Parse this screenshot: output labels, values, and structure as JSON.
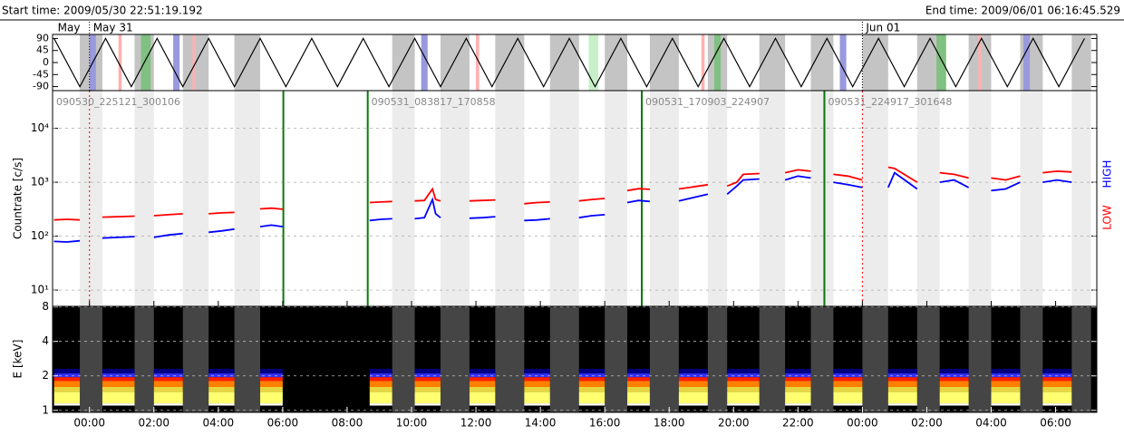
{
  "header": {
    "start": "Start time: 2009/05/30 22:51:19.192",
    "end": "End time: 2009/06/01 06:16:45.529"
  },
  "chart_data": [
    {
      "type": "line",
      "color": "#000000",
      "ylim": [
        -105,
        105
      ],
      "yticks": [
        90,
        45,
        0,
        -45,
        -90
      ],
      "x": [
        -1.1,
        -0.3,
        0.5,
        1.3,
        2.1,
        2.9,
        3.7,
        4.5,
        5.3,
        6.1,
        6.9,
        7.7,
        8.5,
        9.3,
        10.1,
        10.9,
        11.7,
        12.5,
        13.3,
        14.1,
        14.9,
        15.7,
        16.5,
        17.3,
        18.1,
        18.9,
        19.7,
        20.5,
        21.3,
        22.1,
        22.9,
        23.7,
        24.5,
        25.3,
        26.1,
        26.9,
        27.7,
        28.5,
        29.3,
        30.1,
        30.9
      ],
      "values": [
        90,
        -90,
        90,
        -90,
        90,
        -90,
        90,
        -90,
        90,
        -90,
        90,
        -90,
        90,
        -90,
        90,
        -90,
        90,
        -90,
        90,
        -90,
        90,
        -90,
        90,
        -90,
        90,
        -90,
        90,
        -90,
        90,
        -90,
        90,
        -90,
        90,
        -90,
        90,
        -90,
        90,
        -90,
        90,
        -90,
        90
      ],
      "date_labels": [
        {
          "value": -1.1,
          "label": "May"
        },
        {
          "value": 0,
          "label": "May 31"
        },
        {
          "value": 24,
          "label": "Jun 01"
        }
      ],
      "bands": [
        {
          "t0": 0.0,
          "t1": 0.2,
          "color": "#9999dd"
        },
        {
          "t0": 2.6,
          "t1": 2.8,
          "color": "#9999dd"
        },
        {
          "t0": 10.3,
          "t1": 10.5,
          "color": "#9999dd"
        },
        {
          "t0": 23.3,
          "t1": 23.5,
          "color": "#9999dd"
        },
        {
          "t0": 29.0,
          "t1": 29.2,
          "color": "#9999dd"
        },
        {
          "t0": 0.9,
          "t1": 1.0,
          "color": "#ffb0b0"
        },
        {
          "t0": 3.2,
          "t1": 3.3,
          "color": "#ffb0b0"
        },
        {
          "t0": 12.0,
          "t1": 12.1,
          "color": "#ffb0b0"
        },
        {
          "t0": 19.0,
          "t1": 19.1,
          "color": "#ffb0b0"
        },
        {
          "t0": 27.6,
          "t1": 27.7,
          "color": "#ffb0b0"
        },
        {
          "t0": 1.6,
          "t1": 1.9,
          "color": "#80c080"
        },
        {
          "t0": 15.5,
          "t1": 15.8,
          "color": "#c8f0c8"
        },
        {
          "t0": 19.4,
          "t1": 19.6,
          "color": "#80c080"
        },
        {
          "t0": 26.3,
          "t1": 26.6,
          "color": "#80c080"
        }
      ]
    },
    {
      "type": "line",
      "ylabel": "Countrate [c/s]",
      "log": true,
      "grid": true,
      "ylim": [
        5,
        50000
      ],
      "yticks": [
        {
          "value": 10,
          "label": "10¹"
        },
        {
          "value": 100,
          "label": "10²"
        },
        {
          "value": 1000,
          "label": "10³"
        },
        {
          "value": 10000,
          "label": "10⁴"
        }
      ],
      "x": [
        -1.1,
        -0.7,
        -0.3,
        null,
        0.4,
        0.9,
        1.4,
        null,
        2.0,
        2.45,
        2.9,
        null,
        3.7,
        4.1,
        4.5,
        null,
        5.3,
        5.65,
        6.0,
        null,
        8.7,
        9.05,
        9.4,
        null,
        10.1,
        10.4,
        10.65,
        10.75,
        10.9,
        null,
        11.8,
        12.2,
        12.6,
        null,
        13.5,
        13.9,
        14.3,
        null,
        15.2,
        15.6,
        16.0,
        null,
        16.7,
        17.05,
        17.4,
        null,
        18.3,
        18.75,
        19.2,
        null,
        19.8,
        20.1,
        20.3,
        20.8,
        null,
        21.6,
        22.0,
        22.4,
        null,
        23.1,
        23.55,
        24.0,
        null,
        24.8,
        25.0,
        25.7,
        null,
        26.4,
        26.85,
        27.3,
        null,
        28.0,
        28.45,
        28.9,
        null,
        29.6,
        30.05,
        30.5
      ],
      "series": [
        {
          "name": "LOW",
          "color": "#ff0000",
          "values": [
            200,
            205,
            200,
            null,
            225,
            230,
            235,
            null,
            240,
            250,
            260,
            null,
            260,
            270,
            275,
            null,
            320,
            330,
            315,
            null,
            420,
            430,
            440,
            null,
            450,
            460,
            750,
            480,
            450,
            null,
            450,
            460,
            470,
            null,
            400,
            420,
            430,
            null,
            450,
            480,
            500,
            null,
            700,
            760,
            740,
            null,
            750,
            820,
            900,
            null,
            850,
            1000,
            1400,
            1450,
            null,
            1500,
            1700,
            1600,
            null,
            1400,
            1300,
            1100,
            null,
            1900,
            1800,
            1000,
            null,
            1500,
            1400,
            1200,
            null,
            1200,
            1100,
            1300,
            null,
            1500,
            1600,
            1550
          ]
        },
        {
          "name": "HIGH",
          "color": "#0000ff",
          "values": [
            80,
            78,
            82,
            null,
            92,
            95,
            98,
            null,
            95,
            105,
            112,
            null,
            118,
            125,
            135,
            null,
            150,
            160,
            150,
            null,
            195,
            205,
            210,
            null,
            210,
            220,
            480,
            260,
            220,
            null,
            215,
            220,
            230,
            null,
            195,
            200,
            210,
            null,
            220,
            240,
            250,
            null,
            420,
            460,
            440,
            null,
            450,
            520,
            600,
            null,
            600,
            850,
            1100,
            1150,
            null,
            1100,
            1300,
            1200,
            null,
            1000,
            900,
            800,
            null,
            800,
            1500,
            750,
            null,
            1000,
            1100,
            800,
            null,
            700,
            750,
            1000,
            null,
            1000,
            1100,
            1000
          ]
        }
      ],
      "gaps": [
        [
          -0.3,
          0.4
        ],
        [
          1.4,
          2.0
        ],
        [
          2.9,
          3.7
        ],
        [
          4.5,
          5.3
        ],
        [
          9.4,
          10.1
        ],
        [
          10.9,
          11.8
        ],
        [
          12.6,
          13.5
        ],
        [
          14.3,
          15.2
        ],
        [
          16.0,
          16.7
        ],
        [
          17.4,
          18.3
        ],
        [
          19.2,
          19.8
        ],
        [
          20.8,
          21.6
        ],
        [
          22.4,
          23.1
        ],
        [
          24.0,
          24.8
        ],
        [
          25.7,
          26.4
        ],
        [
          27.3,
          28.0
        ],
        [
          28.9,
          29.6
        ],
        [
          30.5,
          31.1
        ]
      ],
      "observations": [
        {
          "id": "090530_225121_300106",
          "start": -1.146,
          "end": 6.02
        },
        {
          "id": "090531_083817_170858",
          "start": 8.64,
          "end": 17.15
        },
        {
          "id": "090531_170903_224907",
          "start": 17.15,
          "end": 22.82
        },
        {
          "id": "090531_224917_301648",
          "start": 22.82,
          "end": 30.28
        }
      ]
    },
    {
      "type": "spectrogram",
      "ylabel": "E [keV]",
      "log": true,
      "ylim": [
        0.96,
        8.1
      ],
      "yticks": [
        1,
        2,
        4,
        8
      ],
      "grid": true,
      "xlim": [
        -1.146,
        31.279
      ],
      "xticks": [
        {
          "value": 0,
          "label": "00:00"
        },
        {
          "value": 2,
          "label": "02:00"
        },
        {
          "value": 4,
          "label": "04:00"
        },
        {
          "value": 6,
          "label": "06:00"
        },
        {
          "value": 8,
          "label": "08:00"
        },
        {
          "value": 10,
          "label": "10:00"
        },
        {
          "value": 12,
          "label": "12:00"
        },
        {
          "value": 14,
          "label": "14:00"
        },
        {
          "value": 16,
          "label": "16:00"
        },
        {
          "value": 18,
          "label": "18:00"
        },
        {
          "value": 20,
          "label": "20:00"
        },
        {
          "value": 22,
          "label": "22:00"
        },
        {
          "value": 24,
          "label": "00:00"
        },
        {
          "value": 26,
          "label": "02:00"
        },
        {
          "value": 28,
          "label": "04:00"
        },
        {
          "value": 30,
          "label": "06:00"
        }
      ],
      "layers": [
        {
          "lo": 1.1,
          "hi": 1.15,
          "color": "#ffffff"
        },
        {
          "lo": 1.15,
          "hi": 1.45,
          "color": "#ffff70"
        },
        {
          "lo": 1.45,
          "hi": 1.6,
          "color": "#e6d640"
        },
        {
          "lo": 1.6,
          "hi": 1.8,
          "color": "#ff8000"
        },
        {
          "lo": 1.8,
          "hi": 1.95,
          "color": "#ff2000"
        },
        {
          "lo": 1.95,
          "hi": 2.1,
          "color": "#3030ff"
        },
        {
          "lo": 2.1,
          "hi": 2.3,
          "color": "#000080"
        }
      ]
    }
  ]
}
